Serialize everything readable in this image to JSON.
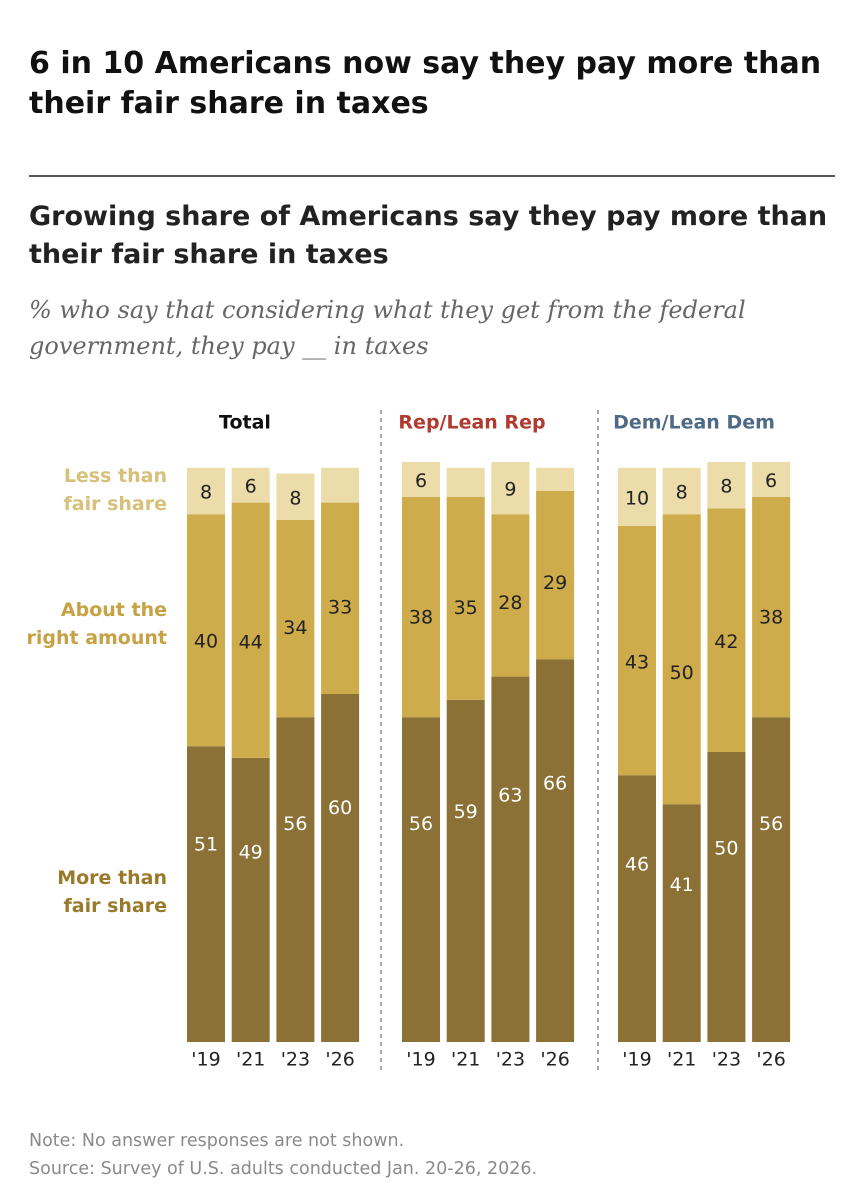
{
  "headline": "6 in 10 Americans now say they pay more than their fair share in taxes",
  "footer": {
    "note": "Note: No answer responses are not shown.",
    "source": "Source: Survey of U.S. adults conducted Jan. 20-26, 2026."
  },
  "colors": {
    "less": "#ebdcaa",
    "right": "#cfac4b",
    "more": "#8b7135",
    "label_less": "#d6c07a",
    "label_right": "#c6a245",
    "label_more": "#9a7a2a",
    "total_title": "#111111",
    "rep_title": "#b03a2e",
    "dem_title": "#4e6a86",
    "divider": "#777777"
  },
  "chart_data": {
    "type": "bar",
    "stacked": true,
    "title": "Growing share of Americans say they pay more than their fair share in taxes",
    "subtitle": "% who say that considering what they get from the federal government, they pay __ in taxes",
    "categories": [
      "'19",
      "'21",
      "'23",
      "'26"
    ],
    "series_labels": [
      {
        "key": "less",
        "text": "Less than fair share"
      },
      {
        "key": "right",
        "text": "About the right amount"
      },
      {
        "key": "more",
        "text": "More than fair share"
      }
    ],
    "groups": [
      {
        "name": "Total",
        "color_key": "total_title",
        "more": [
          51,
          49,
          56,
          60
        ],
        "right": [
          40,
          44,
          34,
          33
        ],
        "less": [
          8,
          6,
          8,
          6
        ],
        "less_labels": [
          "8",
          "6",
          "8",
          ""
        ],
        "right_labels": [
          "40",
          "44",
          "34",
          "33"
        ],
        "more_labels": [
          "51",
          "49",
          "56",
          "60"
        ]
      },
      {
        "name": "Rep/Lean Rep",
        "color_key": "rep_title",
        "more": [
          56,
          59,
          63,
          66
        ],
        "right": [
          38,
          35,
          28,
          29
        ],
        "less": [
          6,
          5,
          9,
          4
        ],
        "less_labels": [
          "6",
          "",
          "9",
          ""
        ],
        "right_labels": [
          "38",
          "35",
          "28",
          "29"
        ],
        "more_labels": [
          "56",
          "59",
          "63",
          "66"
        ]
      },
      {
        "name": "Dem/Lean Dem",
        "color_key": "dem_title",
        "more": [
          46,
          41,
          50,
          56
        ],
        "right": [
          43,
          50,
          42,
          38
        ],
        "less": [
          10,
          8,
          8,
          6
        ],
        "less_labels": [
          "10",
          "8",
          "8",
          "6"
        ],
        "right_labels": [
          "43",
          "50",
          "42",
          "38"
        ],
        "more_labels": [
          "46",
          "41",
          "50",
          "56"
        ]
      }
    ],
    "y_range": [
      0,
      100
    ],
    "grid": false
  }
}
